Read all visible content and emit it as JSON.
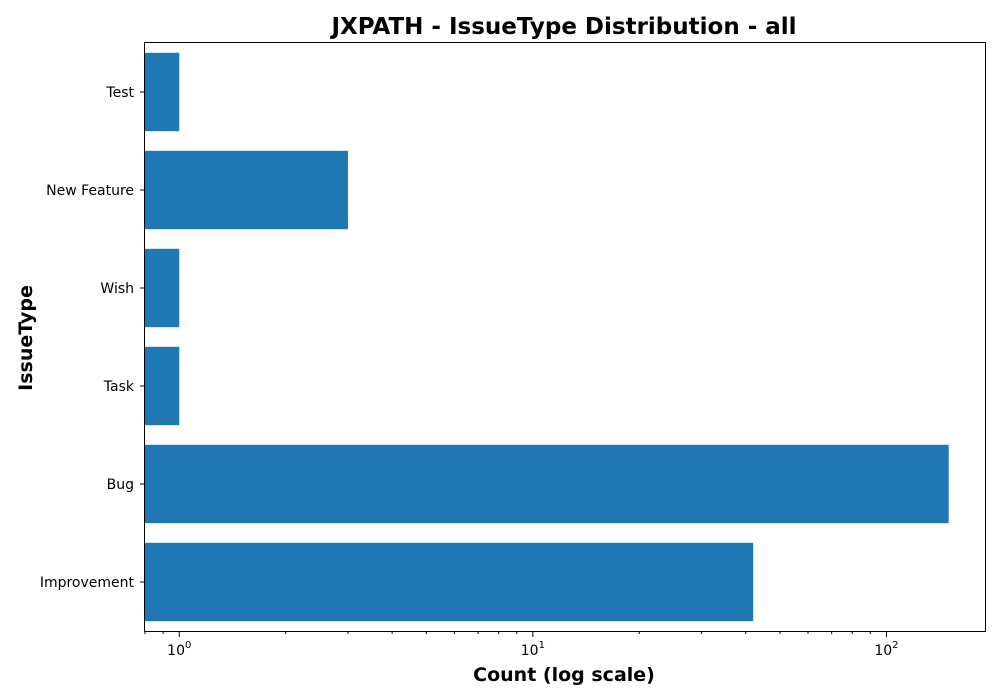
{
  "chart_data": {
    "type": "bar",
    "orientation": "horizontal",
    "title": "JXPATH - IssueType Distribution - all",
    "xlabel": "Count (log scale)",
    "ylabel": "IssueType",
    "x_scale": "log",
    "xlim": [
      0.8,
      190
    ],
    "x_ticks": [
      {
        "value": 1,
        "base": "10",
        "exp": "0"
      },
      {
        "value": 10,
        "base": "10",
        "exp": "1"
      },
      {
        "value": 100,
        "base": "10",
        "exp": "2"
      }
    ],
    "categories": [
      "Improvement",
      "Bug",
      "Task",
      "Wish",
      "New Feature",
      "Test"
    ],
    "values": [
      42,
      150,
      1,
      1,
      3,
      1
    ],
    "color": "#1f77b4",
    "grid": false
  }
}
